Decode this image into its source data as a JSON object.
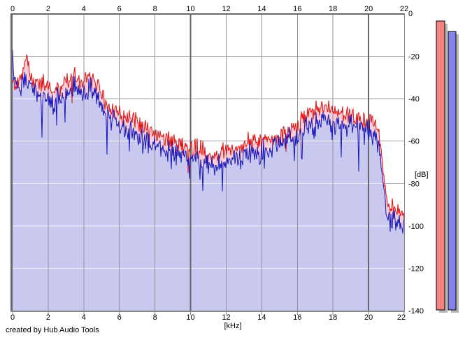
{
  "window": {
    "background": "#ffffff"
  },
  "footer": {
    "credit": "created by Hub Audio Tools"
  },
  "axes": {
    "x_unit": "[kHz]",
    "y_unit": "[dB]",
    "x_ticks": [
      0,
      2,
      4,
      6,
      8,
      10,
      12,
      14,
      16,
      18,
      20,
      22
    ],
    "y_ticks": [
      0,
      -20,
      -40,
      -60,
      -80,
      -100,
      -120,
      -140
    ]
  },
  "chart_data": {
    "type": "area",
    "title": "",
    "xlabel": "[kHz]",
    "ylabel": "[dB]",
    "x_range": [
      0,
      22
    ],
    "y_range": [
      -140,
      0
    ],
    "grid": true,
    "gridline_color": "#92929a",
    "emphasized_gridline_color": "#66666e",
    "hgrid_color": "#a4a4a8",
    "hgrid_over_fill_color": "#ffffff",
    "border_dark": "#68686c",
    "border_light": "#85858a",
    "x_step_khz": 0.25,
    "series": [
      {
        "name": "left-channel-spectrum",
        "line_color": "#e01010",
        "fill_color": "#f7cdd7",
        "jitter_db": 5.5,
        "spike_prob": 0.02,
        "spike_db": 13,
        "values_db": [
          -34,
          -31,
          -30,
          -22,
          -28,
          -32,
          -34,
          -33,
          -36,
          -37,
          -35,
          -35,
          -32,
          -30,
          -29,
          -32,
          -31,
          -30,
          -31,
          -33,
          -39,
          -42,
          -45,
          -46,
          -47,
          -48,
          -49,
          -50,
          -51,
          -53,
          -54,
          -56,
          -57,
          -58,
          -59,
          -59,
          -60,
          -61,
          -62,
          -62,
          -63,
          -63,
          -64,
          -65,
          -66,
          -66,
          -66,
          -65,
          -65,
          -64,
          -63,
          -63,
          -62,
          -61,
          -61,
          -60,
          -60,
          -59,
          -59,
          -58,
          -57,
          -56,
          -55,
          -54,
          -52,
          -50,
          -48,
          -47,
          -46,
          -45,
          -44,
          -45,
          -46,
          -46,
          -47,
          -48,
          -48,
          -49,
          -50,
          -50,
          -51,
          -52,
          -54,
          -66,
          -89,
          -92,
          -93,
          -94,
          -95
        ]
      },
      {
        "name": "right-channel-spectrum",
        "line_color": "#1616bc",
        "fill_color": "#c9c9ef",
        "jitter_db": 6.5,
        "spike_prob": 0.055,
        "spike_db": 17,
        "start_peak_db": -17,
        "values_db": [
          -24,
          -36,
          -35,
          -28,
          -33,
          -37,
          -39,
          -38,
          -41,
          -42,
          -40,
          -40,
          -37,
          -35,
          -34,
          -37,
          -36,
          -35,
          -36,
          -38,
          -44,
          -47,
          -50,
          -51,
          -52,
          -53,
          -54,
          -55,
          -56,
          -58,
          -59,
          -61,
          -62,
          -63,
          -64,
          -64,
          -65,
          -66,
          -67,
          -67,
          -68,
          -68,
          -69,
          -70,
          -71,
          -71,
          -71,
          -70,
          -70,
          -69,
          -68,
          -68,
          -67,
          -66,
          -66,
          -65,
          -65,
          -64,
          -64,
          -63,
          -62,
          -61,
          -60,
          -59,
          -57,
          -55,
          -53,
          -52,
          -51,
          -50,
          -49,
          -50,
          -51,
          -51,
          -52,
          -53,
          -53,
          -54,
          -55,
          -55,
          -56,
          -57,
          -59,
          -71,
          -94,
          -97,
          -98,
          -99,
          -100
        ]
      }
    ],
    "meters": [
      {
        "name": "left-level-meter",
        "color": "#f28282",
        "value_db": -3.3
      },
      {
        "name": "right-level-meter",
        "color": "#8282e8",
        "value_db": -8.3
      }
    ],
    "meter_shadow_color": "#b8b8b8"
  }
}
